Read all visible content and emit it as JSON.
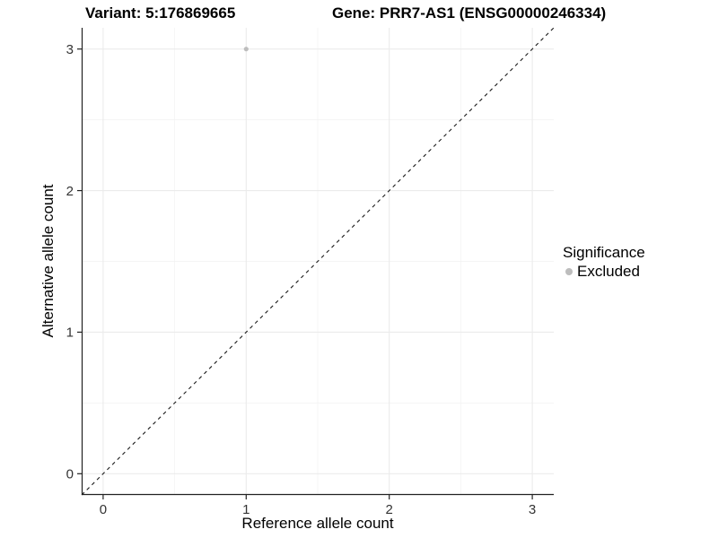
{
  "titles": {
    "variant": "Variant: 5:176869665",
    "gene": "Gene: PRR7-AS1 (ENSG00000246334)"
  },
  "axes": {
    "x": {
      "label": "Reference allele count",
      "tick_labels": [
        "0",
        "1",
        "2",
        "3"
      ]
    },
    "y": {
      "label": "Alternative allele count",
      "tick_labels": [
        "0",
        "1",
        "2",
        "3"
      ]
    }
  },
  "legend": {
    "title": "Significance",
    "items": [
      {
        "label": "Excluded",
        "color": "#bdbdbd",
        "marker": "dot"
      }
    ]
  },
  "colors": {
    "background": "#ffffff",
    "grid_major": "#ebebeb",
    "grid_minor": "#f2f2f2",
    "axis_line": "#222222",
    "tick_text": "#333333",
    "dashed_line": "#1a1a1a",
    "point": "#bdbdbd"
  },
  "chart_data": {
    "type": "scatter",
    "title": "Variant: 5:176869665 — Gene: PRR7-AS1 (ENSG00000246334)",
    "xlabel": "Reference allele count",
    "ylabel": "Alternative allele count",
    "xlim": [
      -0.15,
      3.15
    ],
    "ylim": [
      -0.15,
      3.15
    ],
    "x_ticks": [
      0,
      1,
      2,
      3
    ],
    "y_ticks": [
      0,
      1,
      2,
      3
    ],
    "grid": "major+minor",
    "legend_position": "right",
    "legend_title": "Significance",
    "series": [
      {
        "name": "Excluded",
        "color": "#bdbdbd",
        "marker": "circle",
        "points": [
          {
            "x": 1,
            "y": 3
          }
        ]
      }
    ],
    "reference_line": {
      "type": "identity y=x",
      "style": "dashed",
      "from": [
        -0.15,
        -0.15
      ],
      "to": [
        3.15,
        3.15
      ]
    }
  }
}
